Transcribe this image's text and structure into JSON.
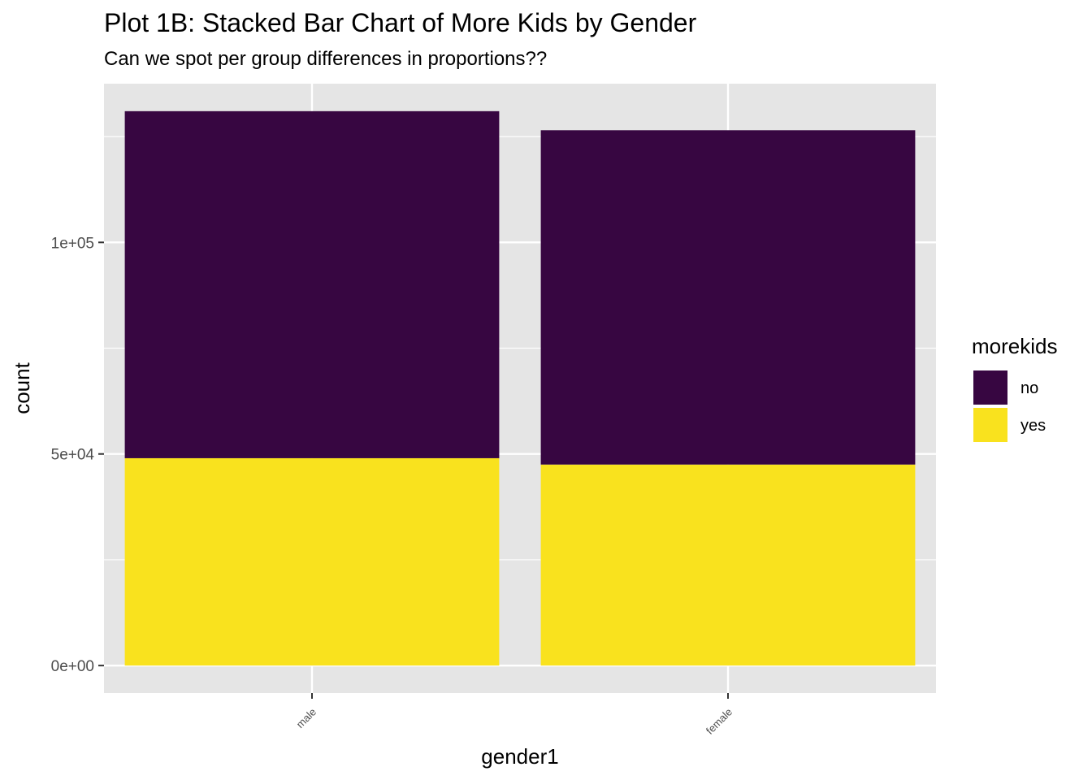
{
  "chart_data": {
    "type": "bar",
    "stacked": true,
    "title": "Plot 1B: Stacked Bar Chart of More Kids by Gender",
    "subtitle": "Can we spot per group differences in proportions??",
    "xlabel": "gender1",
    "ylabel": "count",
    "categories": [
      "male",
      "female"
    ],
    "series": [
      {
        "name": "no",
        "color": "#370641",
        "values": [
          82000,
          79000
        ]
      },
      {
        "name": "yes",
        "color": "#F9E21E",
        "values": [
          49000,
          47500
        ]
      }
    ],
    "yticks": [
      0,
      50000,
      100000
    ],
    "ytick_labels": [
      "0e+00",
      "5e+04",
      "1e+05"
    ],
    "ylim": [
      -6500,
      137500
    ],
    "grid": true,
    "legend": {
      "title": "morekids",
      "position": "right"
    },
    "panel_background": "#E5E5E5",
    "grid_color": "#FFFFFF"
  }
}
